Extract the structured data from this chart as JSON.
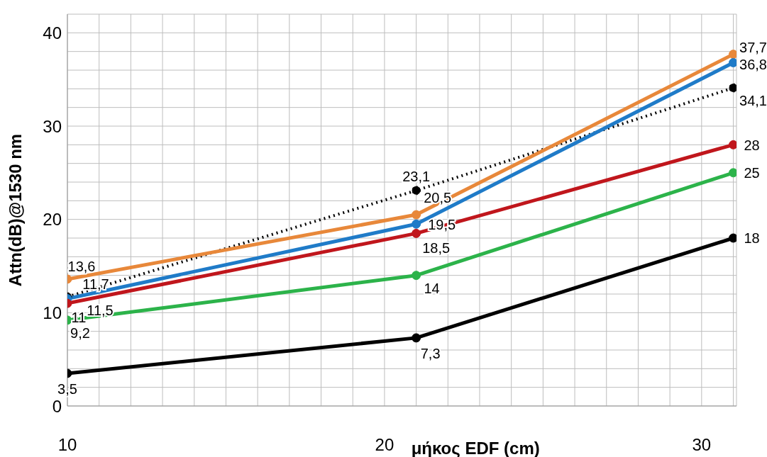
{
  "chart_data": {
    "type": "line",
    "xlabel": "μήκος EDF (cm)",
    "ylabel": "Attn(dB)@1530 nm",
    "x": [
      10,
      21,
      31
    ],
    "xlim": [
      10,
      31.1
    ],
    "xticks": [
      10,
      {
        "value": 11,
        "label": null
      },
      {
        "value": 12,
        "label": null
      },
      {
        "value": 13,
        "label": null
      },
      {
        "value": 14,
        "label": null
      },
      {
        "value": 15,
        "label": null
      },
      {
        "value": 16,
        "label": null
      },
      {
        "value": 17,
        "label": null
      },
      {
        "value": 18,
        "label": null
      },
      {
        "value": 19,
        "label": null
      },
      20,
      {
        "value": 21,
        "label": null
      },
      {
        "value": 22,
        "label": null
      },
      {
        "value": 23,
        "label": null
      },
      {
        "value": 24,
        "label": null
      },
      {
        "value": 25,
        "label": null
      },
      {
        "value": 26,
        "label": null
      },
      {
        "value": 27,
        "label": null
      },
      {
        "value": 28,
        "label": null
      },
      {
        "value": 29,
        "label": null
      },
      30,
      {
        "value": 31,
        "label": null
      }
    ],
    "ylim": [
      0,
      42
    ],
    "yticks": [
      0,
      {
        "value": 2,
        "label": null
      },
      {
        "value": 4,
        "label": null
      },
      {
        "value": 6,
        "label": null
      },
      {
        "value": 8,
        "label": null
      },
      10,
      {
        "value": 12,
        "label": null
      },
      {
        "value": 14,
        "label": null
      },
      {
        "value": 16,
        "label": null
      },
      {
        "value": 18,
        "label": null
      },
      20,
      {
        "value": 22,
        "label": null
      },
      {
        "value": 24,
        "label": null
      },
      {
        "value": 26,
        "label": null
      },
      {
        "value": 28,
        "label": null
      },
      30,
      {
        "value": 32,
        "label": null
      },
      {
        "value": 34,
        "label": null
      },
      {
        "value": 36,
        "label": null
      },
      {
        "value": 38,
        "label": null
      },
      40
    ],
    "grid": true,
    "marker": "circle",
    "line_style": "solid",
    "series": [
      {
        "color": "#000000",
        "values": [
          11.7,
          23.1,
          34.1
        ],
        "line_style": "dotted",
        "value_labels": [
          "11,7",
          "23,1",
          "34,1"
        ]
      },
      {
        "color": "#e8883a",
        "values": [
          13.6,
          20.5,
          37.7
        ],
        "value_labels": [
          "13,6",
          "20,5",
          "37,7"
        ]
      },
      {
        "color": "#1f7bc8",
        "values": [
          11.5,
          19.5,
          36.8
        ],
        "value_labels": [
          "11,5",
          "19,5",
          "36,8"
        ]
      },
      {
        "color": "#c0161c",
        "values": [
          11,
          18.5,
          28
        ],
        "value_labels": [
          "11",
          "18,5",
          "28"
        ]
      },
      {
        "color": "#2cb34a",
        "values": [
          9.2,
          14,
          25
        ],
        "value_labels": [
          "9,2",
          "14",
          "25"
        ]
      },
      {
        "color": "#000000",
        "values": [
          3.5,
          7.3,
          18
        ],
        "value_labels": [
          "3,5",
          "7,3",
          "18"
        ]
      }
    ]
  }
}
